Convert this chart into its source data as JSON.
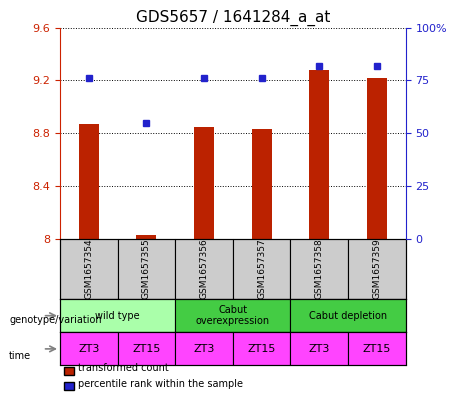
{
  "title": "GDS5657 / 1641284_a_at",
  "samples": [
    "GSM1657354",
    "GSM1657355",
    "GSM1657356",
    "GSM1657357",
    "GSM1657358",
    "GSM1657359"
  ],
  "transformed_counts": [
    8.87,
    8.03,
    8.85,
    8.83,
    9.28,
    9.22
  ],
  "percentile_ranks": [
    76,
    55,
    76,
    76,
    82,
    82
  ],
  "bar_color": "#bb2200",
  "dot_color": "#2222cc",
  "ylim_left": [
    8.0,
    9.6
  ],
  "ylim_right": [
    0,
    100
  ],
  "yticks_left": [
    8.0,
    8.4,
    8.8,
    9.2,
    9.6
  ],
  "yticks_right": [
    0,
    25,
    50,
    75,
    100
  ],
  "ytick_labels_left": [
    "8",
    "8.4",
    "8.8",
    "9.2",
    "9.6"
  ],
  "ytick_labels_right": [
    "0",
    "25",
    "50",
    "75",
    "100%"
  ],
  "grid_y": [
    8.0,
    8.4,
    8.8,
    9.2,
    9.6
  ],
  "genotype_groups": [
    {
      "label": "wild type",
      "start": 0,
      "end": 2,
      "color": "#aaffaa"
    },
    {
      "label": "Cabut\noverexpression",
      "start": 2,
      "end": 4,
      "color": "#44dd44"
    },
    {
      "label": "Cabut depletion",
      "start": 4,
      "end": 6,
      "color": "#44dd44"
    }
  ],
  "time_labels": [
    "ZT3",
    "ZT15",
    "ZT3",
    "ZT15",
    "ZT3",
    "ZT15"
  ],
  "time_color": "#ff44ff",
  "gsm_bg_color": "#cccccc",
  "legend_red_label": "transformed count",
  "legend_blue_label": "percentile rank within the sample",
  "left_axis_color": "#cc2200",
  "right_axis_color": "#2222cc",
  "row_label_genotype": "genotype/variation",
  "row_label_time": "time"
}
